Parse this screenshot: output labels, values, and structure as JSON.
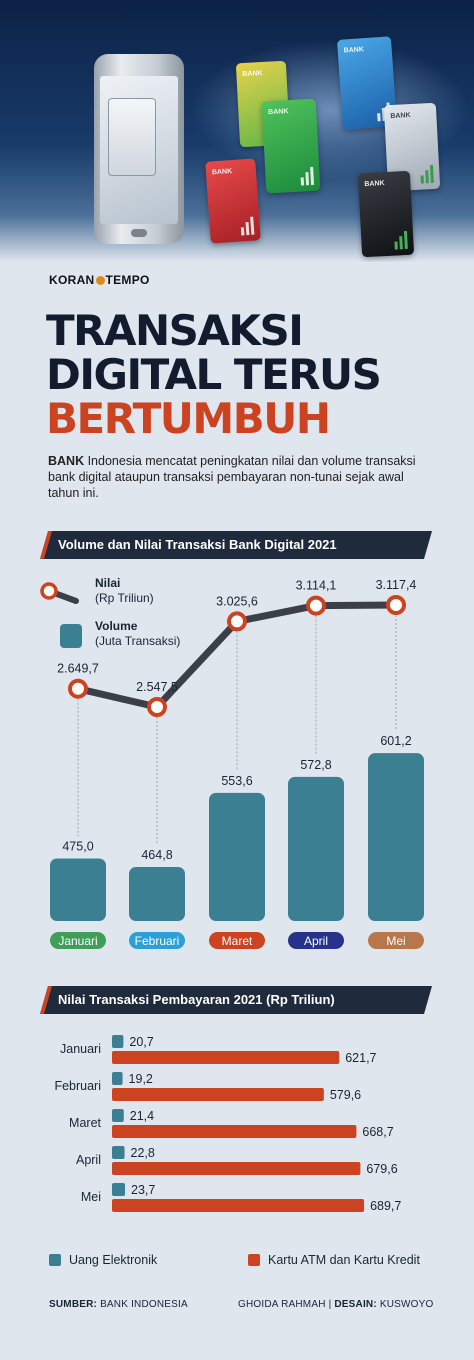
{
  "brand": {
    "left": "KORAN",
    "right": "TEMPO"
  },
  "title": {
    "line1": "TRANSAKSI",
    "line2": "DIGITAL TERUS",
    "line3": "BERTUMBUH"
  },
  "intro": {
    "lead": "BANK",
    "text": " Indonesia mencatat peningkatan nilai dan volume transaksi bank digital ataupun transaksi pembayaran non-tunai sejak awal tahun ini."
  },
  "hero": {
    "card_label": "BANK"
  },
  "colors": {
    "accent": "#cc4322",
    "dark": "#1f2a3c",
    "teal": "#3b7f93",
    "month_janu": "#3f9e57",
    "month_feb": "#2b9fd6",
    "month_mar": "#cc4322",
    "month_apr": "#27338a",
    "month_mei": "#b8764c"
  },
  "section1": {
    "title": "Volume dan Nilai Transaksi Bank Digital 2021"
  },
  "section2": {
    "title": "Nilai Transaksi Pembayaran 2021 (Rp Triliun)"
  },
  "legend1": {
    "nilai_label": "Nilai",
    "nilai_unit": "(Rp Triliun)",
    "volume_label": "Volume",
    "volume_unit": "(Juta Transaksi)"
  },
  "legend2": {
    "elektronik": "Uang Elektronik",
    "kartu": "Kartu ATM dan Kartu Kredit"
  },
  "footer": {
    "source_label": "SUMBER:",
    "source": "BANK INDONESIA",
    "credit_a": "GHOIDA RAHMAH | ",
    "credit_label": "DESAIN:",
    "credit_b": "KUSWOYO"
  },
  "chart_data": [
    {
      "type": "bar",
      "title": "Volume dan Nilai Transaksi Bank Digital 2021",
      "categories": [
        "Januari",
        "Februari",
        "Maret",
        "April",
        "Mei"
      ],
      "series": [
        {
          "name": "Volume (Juta Transaksi)",
          "type": "bar",
          "values": [
            475.0,
            464.8,
            553.6,
            572.8,
            601.2
          ],
          "labels": [
            "475,0",
            "464,8",
            "553,6",
            "572,8",
            "601,2"
          ]
        },
        {
          "name": "Nilai (Rp Triliun)",
          "type": "line",
          "values": [
            2649.7,
            2547.5,
            3025.6,
            3114.1,
            3117.4
          ],
          "labels": [
            "2.649,7",
            "2.547,5",
            "3.025,6",
            "3.114,1",
            "3.117,4"
          ]
        }
      ]
    },
    {
      "type": "bar",
      "title": "Nilai Transaksi Pembayaran 2021 (Rp Triliun)",
      "orientation": "horizontal",
      "categories": [
        "Januari",
        "Februari",
        "Maret",
        "April",
        "Mei"
      ],
      "series": [
        {
          "name": "Uang Elektronik",
          "values": [
            20.7,
            19.2,
            21.4,
            22.8,
            23.7
          ],
          "labels": [
            "20,7",
            "19,2",
            "21,4",
            "22,8",
            "23,7"
          ]
        },
        {
          "name": "Kartu ATM dan Kartu Kredit",
          "values": [
            621.7,
            579.6,
            668.7,
            679.6,
            689.7
          ],
          "labels": [
            "621,7",
            "579,6",
            "668,7",
            "679,6",
            "689,7"
          ]
        }
      ]
    }
  ]
}
